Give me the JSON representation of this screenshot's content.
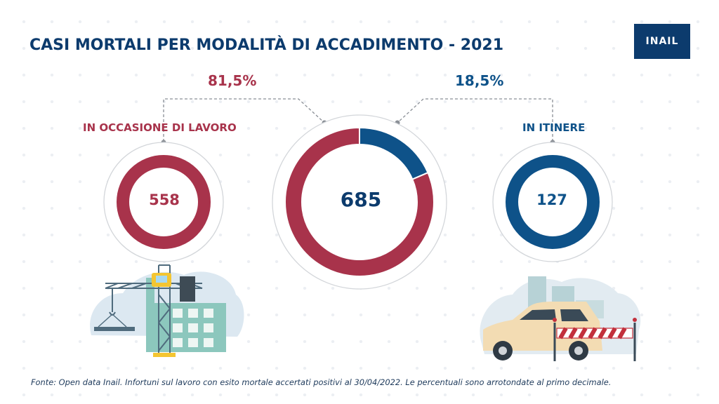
{
  "logo": {
    "text": "INAIL"
  },
  "title": "CASI MORTALI PER MODALITÀ DI ACCADIMENTO - 2021",
  "footer": "Fonte: Open data Inail. Infortuni sul lavoro con esito mortale accertati positivi al 30/04/2022.  Le percentuali sono arrotondate al primo decimale.",
  "colors": {
    "work": "#a8334b",
    "commute": "#0e5289",
    "title": "#0c3b6d"
  },
  "icons": {
    "work": "construction-crane-icon",
    "commute": "car-roadblock-icon"
  },
  "chart_data": {
    "type": "pie",
    "title": "CASI MORTALI PER MODALITÀ DI ACCADIMENTO - 2021",
    "total": {
      "value": 685,
      "label": "685"
    },
    "slices": [
      {
        "name": "IN OCCASIONE DI LAVORO",
        "value": 558,
        "value_label": "558",
        "percent": 81.5,
        "percent_label": "81,5%",
        "color": "#a8334b"
      },
      {
        "name": "IN ITINERE",
        "value": 127,
        "value_label": "127",
        "percent": 18.5,
        "percent_label": "18,5%",
        "color": "#0e5289"
      }
    ]
  }
}
